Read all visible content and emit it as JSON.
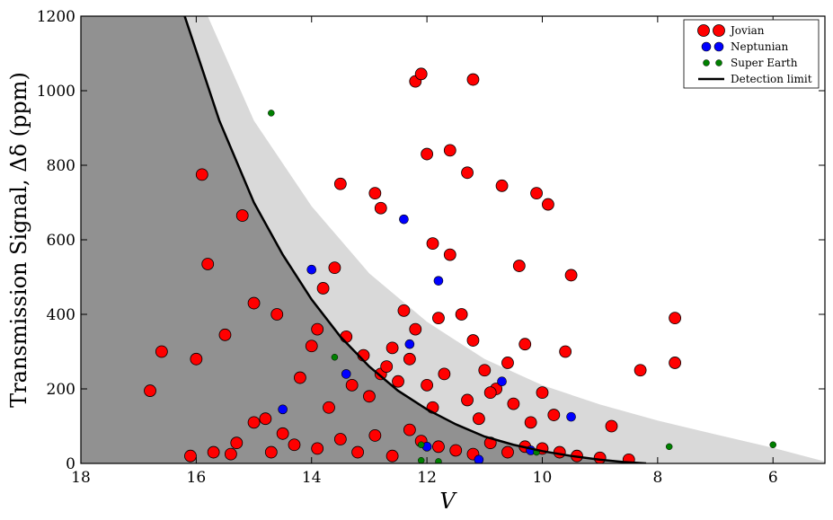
{
  "chart_data": {
    "type": "scatter",
    "xlabel": "V",
    "ylabel": "Transmission Signal, Δδ (ppm)",
    "xlim": [
      18,
      5.1
    ],
    "ylim": [
      0,
      1200
    ],
    "x_inverted": true,
    "x_ticks": [
      "18",
      "16",
      "14",
      "12",
      "10",
      "8",
      "6"
    ],
    "x_tick_values": [
      18,
      16,
      14,
      12,
      10,
      8,
      6
    ],
    "y_ticks": [
      "0",
      "200",
      "400",
      "600",
      "800",
      "1000",
      "1200"
    ],
    "y_tick_values": [
      0,
      200,
      400,
      600,
      800,
      1000,
      1200
    ],
    "grid": false,
    "legend_position": "top-right",
    "colors": {
      "jovian": "#ff0000",
      "neptunian": "#0000ff",
      "super_earth": "#008000",
      "limit_line": "#000000",
      "dark_region": "#919191",
      "light_region": "#d9d9d9"
    },
    "detection_limit": {
      "name": "Detection limit",
      "x": [
        16.2,
        15.6,
        15.0,
        14.5,
        14.0,
        13.5,
        13.0,
        12.5,
        12.0,
        11.5,
        11.0,
        10.5,
        10.0,
        9.5,
        9.0,
        8.6,
        8.2
      ],
      "y": [
        1200,
        920,
        700,
        560,
        440,
        340,
        260,
        195,
        145,
        105,
        72,
        50,
        33,
        20,
        10,
        4,
        0
      ]
    },
    "shaded_band_upper": {
      "x": [
        15.8,
        15.0,
        14.0,
        13.0,
        12.0,
        11.0,
        10.0,
        9.0,
        8.0,
        7.0,
        6.0,
        5.1
      ],
      "y": [
        1200,
        920,
        690,
        510,
        380,
        280,
        210,
        158,
        115,
        78,
        42,
        5
      ]
    },
    "series": [
      {
        "name": "Jovian",
        "x": [
          16.8,
          16.6,
          16.0,
          15.9,
          15.8,
          15.5,
          15.2,
          15.0,
          14.6,
          14.0,
          13.6,
          13.5,
          12.9,
          12.8,
          12.2,
          12.1,
          12.0,
          11.9,
          11.6,
          11.3,
          11.2,
          10.7,
          10.4,
          10.1,
          9.9,
          9.5,
          8.8,
          8.3,
          7.7,
          7.7,
          15.3,
          14.8,
          14.5,
          14.2,
          13.9,
          13.8,
          13.4,
          13.1,
          12.8,
          12.6,
          12.4,
          12.3,
          12.2,
          12.0,
          11.8,
          11.6,
          11.4,
          11.2,
          11.0,
          10.8,
          10.6,
          10.3,
          10.0,
          9.8,
          9.6,
          13.7,
          13.3,
          13.0,
          12.7,
          12.5,
          11.9,
          11.7,
          11.3,
          11.1,
          10.9,
          10.5,
          10.2,
          16.1,
          15.7,
          15.4,
          15.0,
          14.7,
          14.3,
          13.9,
          13.5,
          13.2,
          12.9,
          12.6,
          12.3,
          12.1,
          11.8,
          11.5,
          11.2,
          10.9,
          10.6,
          10.3,
          10.0,
          9.7,
          9.4,
          9.0,
          8.5
        ],
        "y": [
          195,
          300,
          280,
          775,
          535,
          345,
          665,
          430,
          400,
          315,
          525,
          750,
          725,
          685,
          1025,
          1045,
          830,
          590,
          840,
          780,
          1030,
          745,
          530,
          725,
          695,
          505,
          100,
          250,
          270,
          390,
          55,
          120,
          80,
          230,
          360,
          470,
          340,
          290,
          240,
          310,
          410,
          280,
          360,
          210,
          390,
          560,
          400,
          330,
          250,
          200,
          270,
          320,
          190,
          130,
          300,
          150,
          210,
          180,
          260,
          220,
          150,
          240,
          170,
          120,
          190,
          160,
          110,
          20,
          30,
          25,
          110,
          30,
          50,
          40,
          65,
          30,
          75,
          20,
          90,
          60,
          45,
          35,
          25,
          55,
          30,
          45,
          40,
          30,
          20,
          15,
          10
        ]
      },
      {
        "name": "Neptunian",
        "x": [
          14.0,
          13.4,
          12.4,
          12.3,
          11.8,
          10.7,
          9.5,
          14.5,
          12.0,
          11.1,
          10.2
        ],
        "y": [
          520,
          240,
          655,
          320,
          490,
          220,
          125,
          145,
          45,
          10,
          35
        ]
      },
      {
        "name": "Super Earth",
        "x": [
          14.7,
          13.6,
          12.1,
          10.1,
          7.8,
          6.0,
          12.1,
          11.8
        ],
        "y": [
          940,
          285,
          50,
          30,
          45,
          50,
          8,
          5
        ]
      }
    ]
  }
}
